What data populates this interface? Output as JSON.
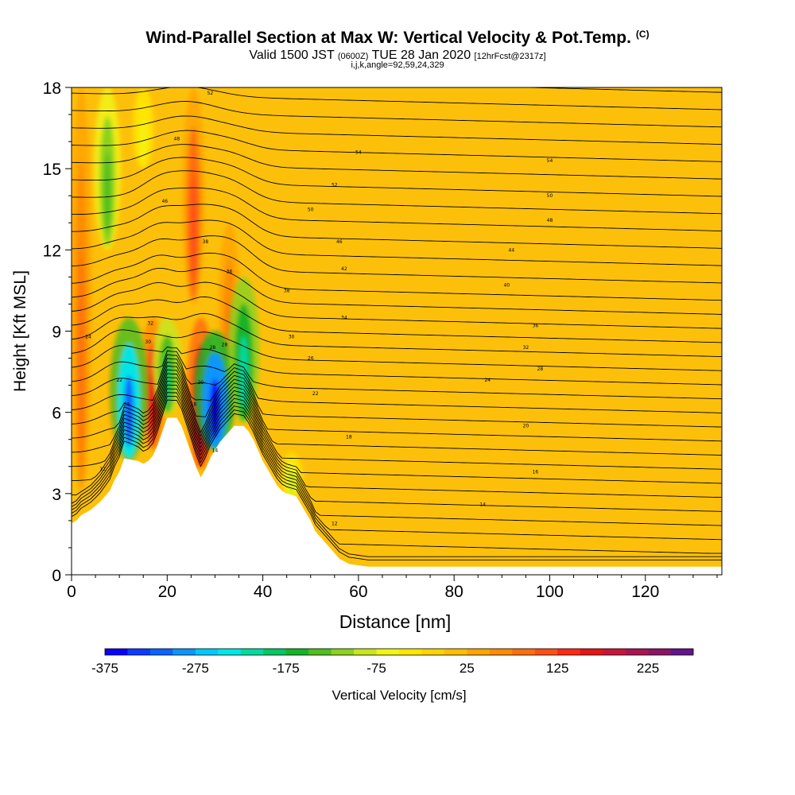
{
  "title": {
    "main": "Wind-Parallel Section at Max W: Vertical Velocity & Pot.Temp.",
    "main_note": "(C)",
    "valid_prefix": "Valid 1500 JST",
    "valid_utc": "(0600Z)",
    "valid_date": "TUE 28 Jan 2020",
    "forecast": "[12hrFcst@2317z]",
    "indices": "i,j,k,angle=92,59,24,329"
  },
  "colors": {
    "background": "#ffffff",
    "contour": "#000000",
    "terrain": "#ffffff",
    "base_field": "#fdc00a",
    "legend": [
      "#0a00ff",
      "#0a3cff",
      "#0a64ff",
      "#0a96ff",
      "#00c8ff",
      "#00e6e6",
      "#00dca0",
      "#00c864",
      "#14b428",
      "#50be1e",
      "#8cd21e",
      "#c8e61e",
      "#f0f514",
      "#ffe600",
      "#ffd200",
      "#ffbe00",
      "#ffa500",
      "#ff8c00",
      "#ff6e0a",
      "#ff5014",
      "#ff2814",
      "#e61414",
      "#c8143c",
      "#aa1450",
      "#8c1464",
      "#64148c"
    ]
  },
  "chart_data": {
    "type": "heatmap",
    "xlabel": "Distance [nm]",
    "ylabel": "Height [Kft MSL]",
    "xlim": [
      0,
      136
    ],
    "ylim": [
      0,
      18
    ],
    "xticks": [
      0,
      20,
      40,
      60,
      80,
      100,
      120
    ],
    "yticks": [
      0,
      3,
      6,
      9,
      12,
      15,
      18
    ],
    "colorbar": {
      "label": "Vertical Velocity [cm/s]",
      "min": -375,
      "max": 275,
      "step": 25,
      "tick_values": [
        -375,
        -275,
        -175,
        -75,
        25,
        125,
        225
      ]
    },
    "terrain_profile": [
      [
        0,
        1.9
      ],
      [
        1,
        2.0
      ],
      [
        2,
        2.2
      ],
      [
        4,
        2.4
      ],
      [
        6,
        2.7
      ],
      [
        8,
        3.1
      ],
      [
        9,
        3.5
      ],
      [
        10,
        3.8
      ],
      [
        11,
        4.3
      ],
      [
        14,
        4.2
      ],
      [
        15,
        4.1
      ],
      [
        16,
        4.2
      ],
      [
        17,
        4.4
      ],
      [
        18,
        4.8
      ],
      [
        19,
        5.3
      ],
      [
        20,
        5.8
      ],
      [
        22,
        5.8
      ],
      [
        23,
        5.5
      ],
      [
        24,
        5.0
      ],
      [
        25,
        4.5
      ],
      [
        26,
        4.0
      ],
      [
        27,
        3.6
      ],
      [
        28,
        3.9
      ],
      [
        29,
        4.3
      ],
      [
        30,
        4.6
      ],
      [
        31,
        4.9
      ],
      [
        32,
        5.1
      ],
      [
        33,
        5.3
      ],
      [
        34,
        5.5
      ],
      [
        36,
        5.5
      ],
      [
        37,
        5.3
      ],
      [
        38,
        5.0
      ],
      [
        39,
        4.6
      ],
      [
        40,
        4.2
      ],
      [
        41,
        3.9
      ],
      [
        42,
        3.6
      ],
      [
        43,
        3.3
      ],
      [
        44,
        3.1
      ],
      [
        45,
        3.0
      ],
      [
        47,
        2.9
      ],
      [
        48,
        2.6
      ],
      [
        49,
        2.3
      ],
      [
        50,
        2.0
      ],
      [
        51,
        1.6
      ],
      [
        52,
        1.4
      ],
      [
        53,
        1.2
      ],
      [
        54,
        1.0
      ],
      [
        55,
        0.8
      ],
      [
        56,
        0.6
      ],
      [
        57,
        0.5
      ],
      [
        58,
        0.4
      ],
      [
        60,
        0.35
      ],
      [
        62,
        0.3
      ],
      [
        136,
        0.3
      ]
    ],
    "updrafts": [
      {
        "x": 10,
        "zmin": 4.5,
        "zmax": 8.5,
        "w": 60
      },
      {
        "x": 17,
        "zmin": 4.6,
        "zmax": 9.5,
        "w": 160
      },
      {
        "x": 27,
        "zmin": 3.9,
        "zmax": 9.5,
        "w": 175
      },
      {
        "x": 25.5,
        "zmin": 10,
        "zmax": 18,
        "w": 100
      },
      {
        "x": 33,
        "zmin": 5.8,
        "zmax": 13,
        "w": 90
      },
      {
        "x": 2,
        "zmin": 3,
        "zmax": 18,
        "w": 75
      }
    ],
    "downdrafts": [
      {
        "x": 12,
        "zmin": 4.2,
        "zmax": 9.5,
        "w": -320
      },
      {
        "x": 20,
        "zmin": 5.9,
        "zmax": 9.5,
        "w": -200
      },
      {
        "x": 30,
        "zmin": 4.6,
        "zmax": 9,
        "w": -375
      },
      {
        "x": 36,
        "zmin": 5.6,
        "zmax": 11,
        "w": -225
      },
      {
        "x": 7.5,
        "zmin": 12,
        "zmax": 18,
        "w": -150
      },
      {
        "x": 15,
        "zmin": 15,
        "zmax": 18,
        "w": -60
      },
      {
        "x": 46,
        "zmin": 2.8,
        "zmax": 4.5,
        "w": -90
      }
    ],
    "theta_contours": {
      "units": "C",
      "interval": 2,
      "labels": [
        {
          "value": "54",
          "x": 60,
          "z": 15.6
        },
        {
          "value": "54",
          "x": 100,
          "z": 15.3
        },
        {
          "value": "52",
          "x": 55,
          "z": 14.4
        },
        {
          "value": "50",
          "x": 100,
          "z": 14.0
        },
        {
          "value": "50",
          "x": 50,
          "z": 13.5
        },
        {
          "value": "48",
          "x": 100,
          "z": 13.1
        },
        {
          "value": "46",
          "x": 56,
          "z": 12.3
        },
        {
          "value": "44",
          "x": 92,
          "z": 12.0
        },
        {
          "value": "42",
          "x": 57,
          "z": 11.3
        },
        {
          "value": "40",
          "x": 91,
          "z": 10.7
        },
        {
          "value": "38",
          "x": 45,
          "z": 10.5
        },
        {
          "value": "36",
          "x": 97,
          "z": 9.2
        },
        {
          "value": "34",
          "x": 57,
          "z": 9.5
        },
        {
          "value": "32",
          "x": 95,
          "z": 8.4
        },
        {
          "value": "30",
          "x": 46,
          "z": 8.8
        },
        {
          "value": "28",
          "x": 98,
          "z": 7.6
        },
        {
          "value": "26",
          "x": 50,
          "z": 8.0
        },
        {
          "value": "24",
          "x": 87,
          "z": 7.2
        },
        {
          "value": "22",
          "x": 51,
          "z": 6.7
        },
        {
          "value": "20",
          "x": 95,
          "z": 5.5
        },
        {
          "value": "18",
          "x": 58,
          "z": 5.1
        },
        {
          "value": "16",
          "x": 97,
          "z": 3.8
        },
        {
          "value": "14",
          "x": 86,
          "z": 2.6
        },
        {
          "value": "12",
          "x": 55,
          "z": 1.9
        },
        {
          "value": "52",
          "x": 29,
          "z": 17.8
        },
        {
          "value": "48",
          "x": 22,
          "z": 16.1
        },
        {
          "value": "46",
          "x": 19.5,
          "z": 13.8
        },
        {
          "value": "38",
          "x": 28,
          "z": 12.3
        },
        {
          "value": "36",
          "x": 33,
          "z": 11.2
        },
        {
          "value": "32",
          "x": 16.5,
          "z": 9.3
        },
        {
          "value": "30",
          "x": 16,
          "z": 8.6
        },
        {
          "value": "28",
          "x": 29.5,
          "z": 8.4
        },
        {
          "value": "28",
          "x": 32,
          "z": 8.5
        },
        {
          "value": "24",
          "x": 3.5,
          "z": 8.8
        },
        {
          "value": "22",
          "x": 10,
          "z": 7.2
        },
        {
          "value": "20",
          "x": 11.5,
          "z": 6.3
        },
        {
          "value": "20",
          "x": 27,
          "z": 7.1
        },
        {
          "value": "18",
          "x": 25.5,
          "z": 6.3
        },
        {
          "value": "14",
          "x": 30,
          "z": 4.6
        },
        {
          "value": "12",
          "x": 6.5,
          "z": 3.9
        }
      ]
    }
  }
}
